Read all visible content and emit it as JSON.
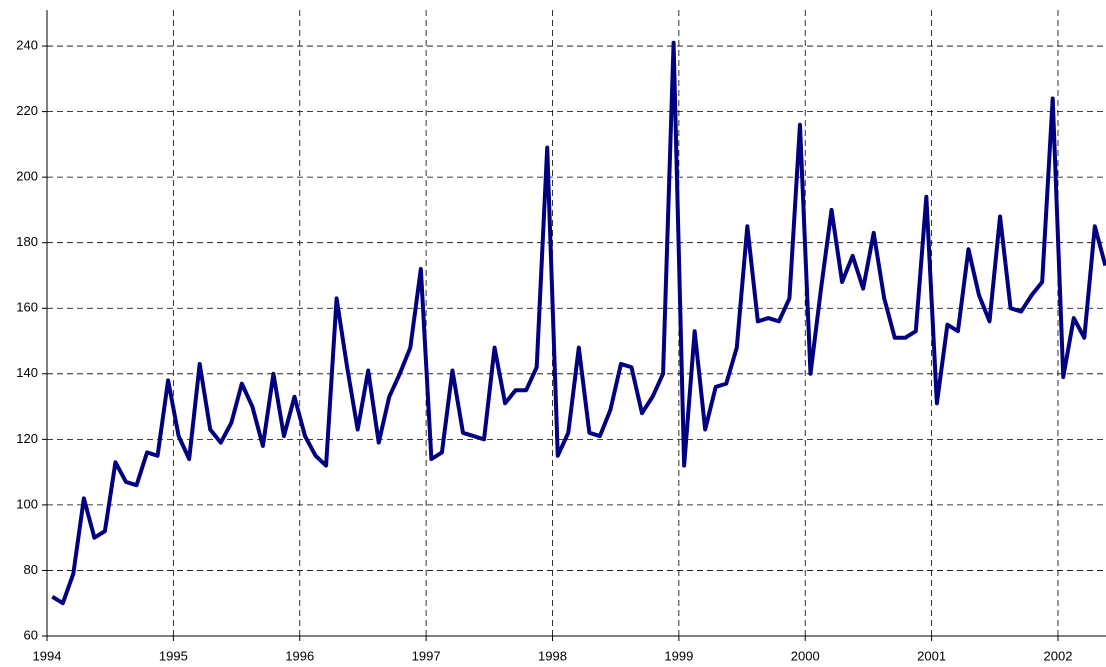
{
  "chart_data": {
    "type": "line",
    "x": [
      1994.0417,
      1994.125,
      1994.2083,
      1994.2917,
      1994.375,
      1994.4583,
      1994.5417,
      1994.625,
      1994.7083,
      1994.7917,
      1994.875,
      1994.9583,
      1995.0417,
      1995.125,
      1995.2083,
      1995.2917,
      1995.375,
      1995.4583,
      1995.5417,
      1995.625,
      1995.7083,
      1995.7917,
      1995.875,
      1995.9583,
      1996.0417,
      1996.125,
      1996.2083,
      1996.2917,
      1996.375,
      1996.4583,
      1996.5417,
      1996.625,
      1996.7083,
      1996.7917,
      1996.875,
      1996.9583,
      1997.0417,
      1997.125,
      1997.2083,
      1997.2917,
      1997.375,
      1997.4583,
      1997.5417,
      1997.625,
      1997.7083,
      1997.7917,
      1997.875,
      1997.9583,
      1998.0417,
      1998.125,
      1998.2083,
      1998.2917,
      1998.375,
      1998.4583,
      1998.5417,
      1998.625,
      1998.7083,
      1998.7917,
      1998.875,
      1998.9583,
      1999.0417,
      1999.125,
      1999.2083,
      1999.2917,
      1999.375,
      1999.4583,
      1999.5417,
      1999.625,
      1999.7083,
      1999.7917,
      1999.875,
      1999.9583,
      2000.0417,
      2000.125,
      2000.2083,
      2000.2917,
      2000.375,
      2000.4583,
      2000.5417,
      2000.625,
      2000.7083,
      2000.7917,
      2000.875,
      2000.9583,
      2001.0417,
      2001.125,
      2001.2083,
      2001.2917,
      2001.375,
      2001.4583,
      2001.5417,
      2001.625,
      2001.7083,
      2001.7917,
      2001.875,
      2001.9583,
      2002.0417,
      2002.125,
      2002.2083,
      2002.2917,
      2002.375
    ],
    "series": [
      {
        "color": "#000080",
        "values": [
          72,
          70,
          79,
          102,
          90,
          92,
          113,
          107,
          106,
          116,
          115,
          138,
          121,
          114,
          143,
          123,
          119,
          125,
          137,
          130,
          118,
          140,
          121,
          133,
          121,
          115,
          112,
          163,
          142,
          123,
          141,
          119,
          133,
          140,
          148,
          172,
          114,
          116,
          141,
          122,
          121,
          120,
          148,
          131,
          135,
          135,
          142,
          209,
          115,
          122,
          148,
          122,
          121,
          129,
          143,
          142,
          128,
          133,
          140,
          241,
          112,
          153,
          123,
          136,
          137,
          148,
          185,
          156,
          157,
          156,
          163,
          216,
          140,
          166,
          190,
          168,
          176,
          166,
          183,
          163,
          151,
          151,
          153,
          194,
          131,
          155,
          153,
          178,
          164,
          156,
          188,
          160,
          159,
          164,
          168,
          224,
          139,
          157,
          151,
          185,
          173
        ]
      }
    ],
    "xlim": [
      1994,
      2002.38
    ],
    "xticks": [
      1994,
      1995,
      1996,
      1997,
      1998,
      1999,
      2000,
      2001,
      2002
    ],
    "ylim": [
      60,
      251
    ],
    "yticks": [
      60,
      80,
      100,
      120,
      140,
      160,
      180,
      200,
      220,
      240
    ],
    "grid": true
  }
}
